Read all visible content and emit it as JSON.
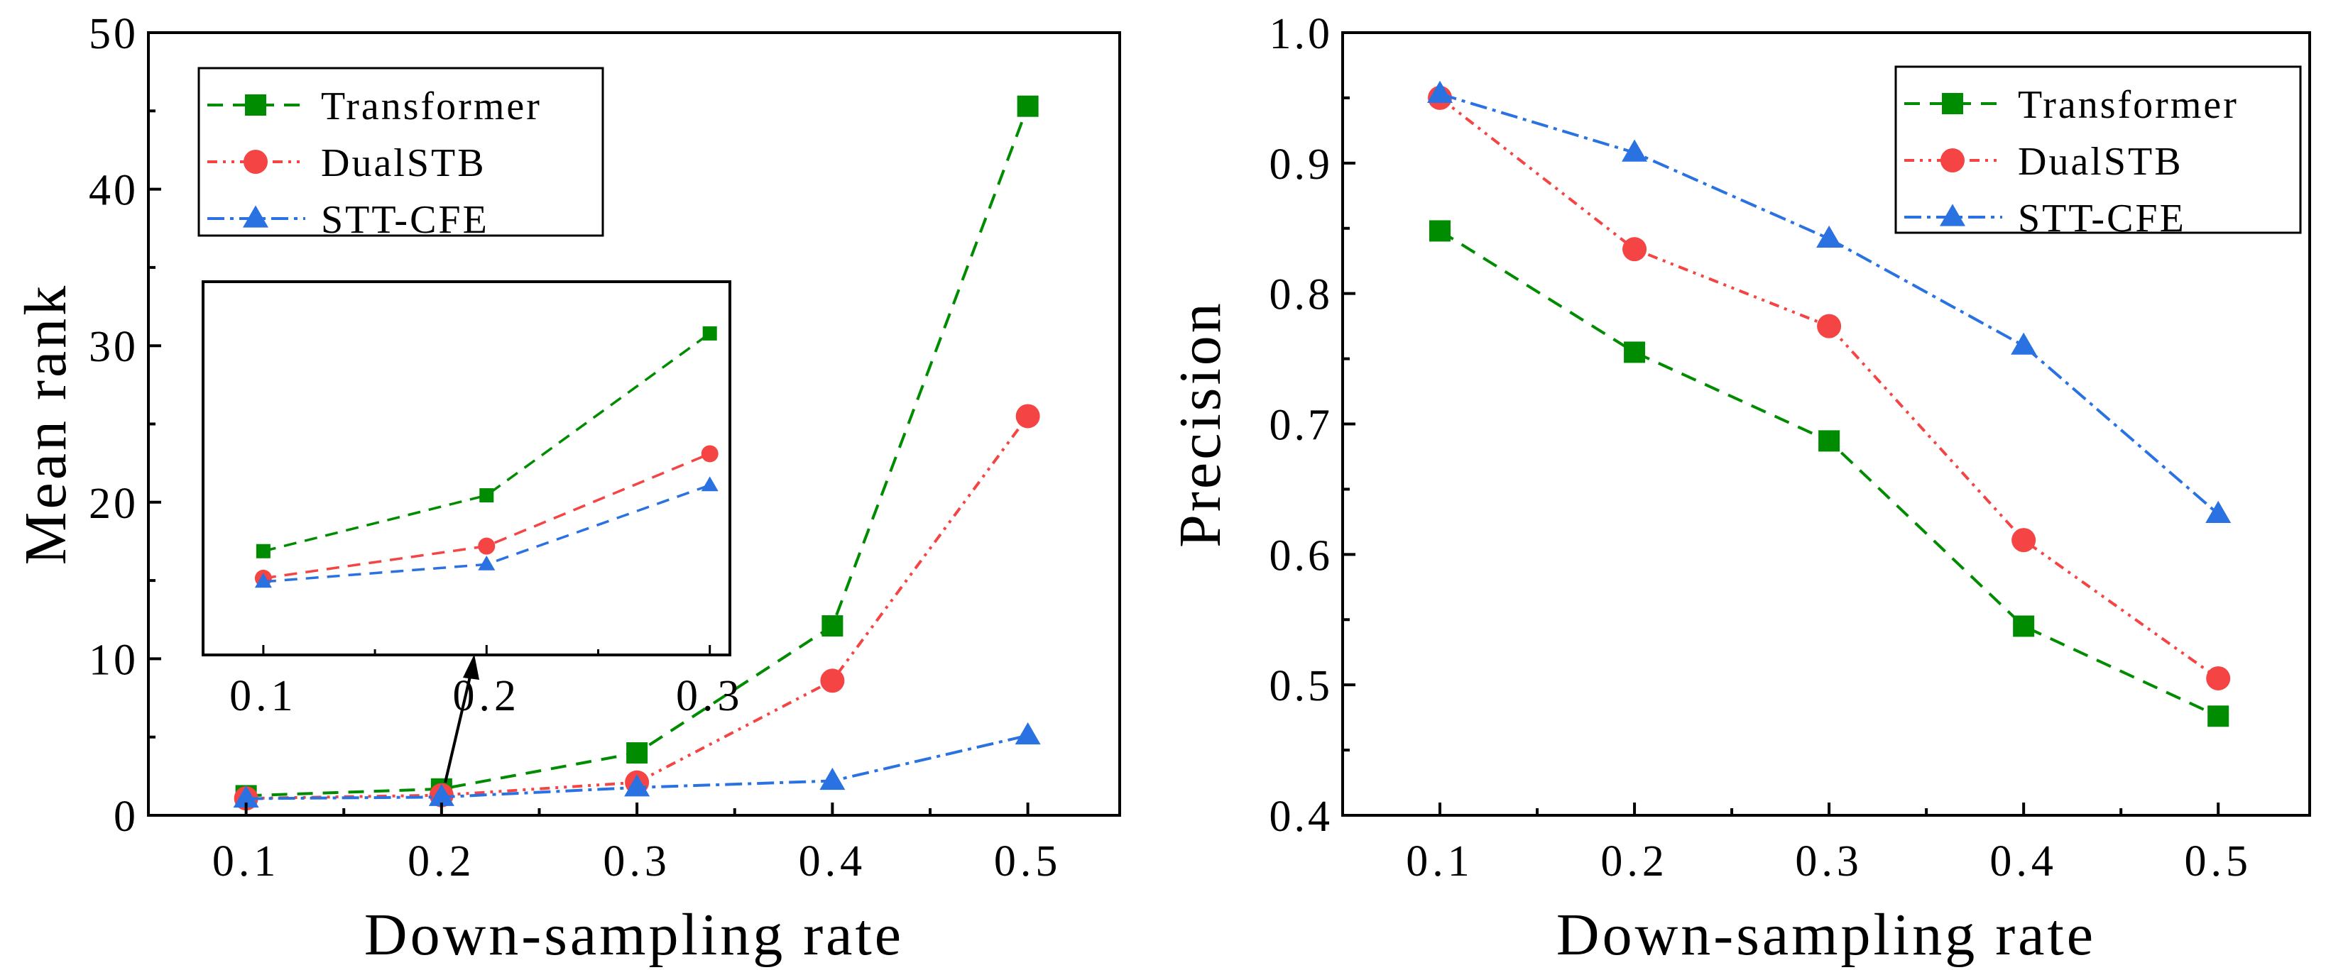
{
  "colors": {
    "Transformer": "#008c00",
    "DualSTB": "#f44444",
    "STT-CFE": "#2a72e2",
    "axis": "#000000"
  },
  "chart_data": [
    {
      "type": "line",
      "title": "",
      "xlabel": "Down-sampling rate",
      "ylabel": "Mean rank",
      "x": [
        0.1,
        0.2,
        0.3,
        0.4,
        0.5
      ],
      "xticks": [
        "0.1",
        "0.2",
        "0.3",
        "0.4",
        "0.5"
      ],
      "xlim": [
        0.05,
        0.547
      ],
      "ylim": [
        0,
        50
      ],
      "yticks": [
        "0",
        "10",
        "20",
        "30",
        "40",
        "50"
      ],
      "legend_position": "top-left",
      "series": [
        {
          "name": "Transformer",
          "marker": "square",
          "values": [
            1.251,
            1.684,
            3.987,
            12.1,
            45.3
          ]
        },
        {
          "name": "DualSTB",
          "marker": "circle",
          "values": [
            1.083,
            1.285,
            2.101,
            8.6,
            25.5
          ]
        },
        {
          "name": "STT-CFE",
          "marker": "triangle",
          "values": [
            1.063,
            1.166,
            1.777,
            2.2,
            5.1
          ]
        }
      ],
      "inset": {
        "x": [
          0.1,
          0.2,
          0.3
        ],
        "xticks": [
          "0.1",
          "0.2",
          "0.3"
        ],
        "xlim": [
          0.073,
          0.309
        ],
        "ylim": [
          0.72,
          5.25
        ],
        "yscale": "log",
        "annotations": {
          "0.1": [
            "1.251",
            "1.083",
            "1.063"
          ],
          "0.2": [
            "1.684",
            "1.285",
            "1.166"
          ],
          "0.3": [
            "3.987",
            "2.101",
            "1.777"
          ]
        }
      }
    },
    {
      "type": "line",
      "title": "",
      "xlabel": "Down-sampling rate",
      "ylabel": "Precision",
      "x": [
        0.1,
        0.2,
        0.3,
        0.4,
        0.5
      ],
      "xticks": [
        "0.1",
        "0.2",
        "0.3",
        "0.4",
        "0.5"
      ],
      "xlim": [
        0.05,
        0.547
      ],
      "ylim": [
        0.4,
        1.0
      ],
      "yticks": [
        "0.4",
        "0.5",
        "0.6",
        "0.7",
        "0.8",
        "0.9",
        "1.0"
      ],
      "legend_position": "top-right",
      "series": [
        {
          "name": "Transformer",
          "marker": "square",
          "values": [
            0.848,
            0.755,
            0.687,
            0.545,
            0.476
          ]
        },
        {
          "name": "DualSTB",
          "marker": "circle",
          "values": [
            0.95,
            0.834,
            0.775,
            0.611,
            0.505
          ]
        },
        {
          "name": "STT-CFE",
          "marker": "triangle",
          "values": [
            0.953,
            0.908,
            0.842,
            0.76,
            0.631
          ]
        }
      ]
    }
  ]
}
